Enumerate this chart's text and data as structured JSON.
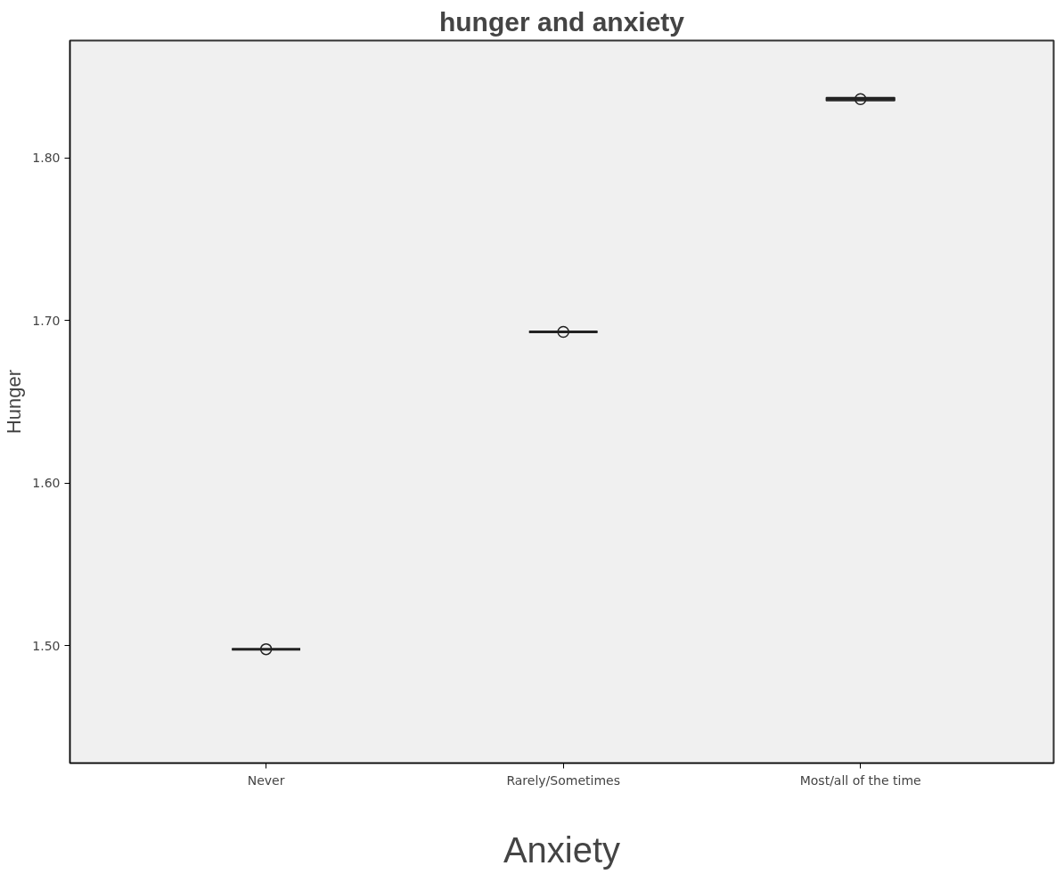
{
  "chart_data": {
    "type": "box",
    "title": "hunger and anxiety",
    "xlabel": "Anxiety",
    "ylabel": "Hunger",
    "categories": [
      "Never",
      "Rarely/Sometimes",
      "Most/all of the time"
    ],
    "boxes": [
      {
        "low": 1.498,
        "q1": 1.498,
        "median": 1.498,
        "q3": 1.498,
        "high": 1.498,
        "mean": 1.498
      },
      {
        "low": 1.693,
        "q1": 1.693,
        "median": 1.693,
        "q3": 1.693,
        "high": 1.693,
        "mean": 1.693
      },
      {
        "low": 1.836,
        "q1": 1.835,
        "median": 1.836,
        "q3": 1.837,
        "high": 1.837,
        "mean": 1.836
      }
    ],
    "ylim": [
      1.428,
      1.872
    ],
    "yticks": [
      {
        "value": 1.5,
        "label": "1.50"
      },
      {
        "value": 1.6,
        "label": "1.60"
      },
      {
        "value": 1.7,
        "label": "1.70"
      },
      {
        "value": 1.8,
        "label": "1.80"
      }
    ],
    "grid": false
  }
}
